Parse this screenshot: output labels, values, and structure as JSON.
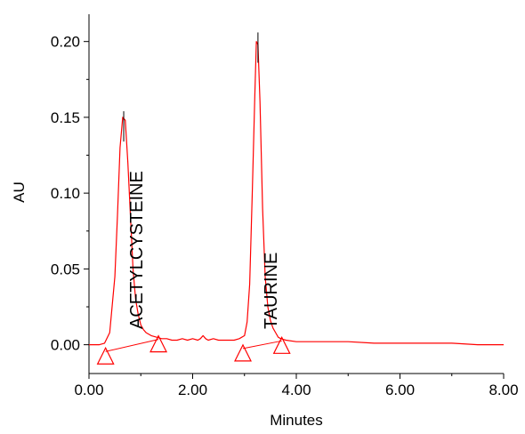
{
  "chart_data": {
    "type": "line",
    "title": "",
    "xlabel": "Minutes",
    "ylabel": "AU",
    "xlim": [
      0.0,
      8.0
    ],
    "ylim": [
      -0.019,
      0.218
    ],
    "x_ticks": [
      0,
      2,
      4,
      6,
      8
    ],
    "x_tick_labels": [
      "0.00",
      "2.00",
      "4.00",
      "6.00",
      "8.00"
    ],
    "y_ticks": [
      0,
      0.05,
      0.1,
      0.15,
      0.2
    ],
    "y_tick_labels": [
      "0.00",
      "0.05",
      "0.10",
      "0.15",
      "0.20"
    ],
    "grid": false,
    "legend": "none",
    "trace_color": "#ff0000",
    "peak_marker_color": "#000000",
    "series": [
      {
        "x": [
          0.0,
          0.2,
          0.3,
          0.4,
          0.5,
          0.55,
          0.6,
          0.65,
          0.7,
          0.75,
          0.8,
          0.85,
          0.9,
          0.95,
          1.0,
          1.05,
          1.1,
          1.2,
          1.3,
          1.4,
          1.5,
          1.6,
          1.7,
          1.8,
          1.9,
          2.0,
          2.1,
          2.15,
          2.2,
          2.25,
          2.3,
          2.4,
          2.5,
          2.6,
          2.7,
          2.8,
          2.9,
          3.0,
          3.05,
          3.1,
          3.15,
          3.2,
          3.23,
          3.26,
          3.3,
          3.35,
          3.4,
          3.45,
          3.5,
          3.55,
          3.6,
          3.65,
          3.7,
          3.8,
          4.0,
          4.5,
          5.0,
          5.5,
          6.0,
          6.5,
          7.0,
          7.5,
          8.0
        ],
        "y": [
          0.0,
          0.0,
          0.001,
          0.008,
          0.045,
          0.085,
          0.13,
          0.15,
          0.148,
          0.12,
          0.085,
          0.05,
          0.03,
          0.02,
          0.013,
          0.01,
          0.008,
          0.006,
          0.005,
          0.004,
          0.004,
          0.003,
          0.003,
          0.004,
          0.003,
          0.004,
          0.003,
          0.004,
          0.006,
          0.004,
          0.003,
          0.004,
          0.003,
          0.003,
          0.003,
          0.003,
          0.004,
          0.006,
          0.015,
          0.04,
          0.1,
          0.165,
          0.2,
          0.198,
          0.16,
          0.09,
          0.045,
          0.025,
          0.016,
          0.011,
          0.008,
          0.005,
          0.004,
          0.003,
          0.002,
          0.002,
          0.002,
          0.001,
          0.001,
          0.001,
          0.001,
          0.0,
          0.0
        ]
      }
    ],
    "peaks": [
      {
        "name": "ACETYLCYSTEINE",
        "apex_x": 0.67,
        "apex_y": 0.154,
        "start_x": 0.32,
        "start_y": -0.008,
        "end_x": 1.34,
        "end_y": 0.0
      },
      {
        "name": "TAURINE",
        "apex_x": 3.26,
        "apex_y": 0.206,
        "start_x": 2.97,
        "start_y": -0.006,
        "end_x": 3.72,
        "end_y": -0.001
      }
    ]
  }
}
